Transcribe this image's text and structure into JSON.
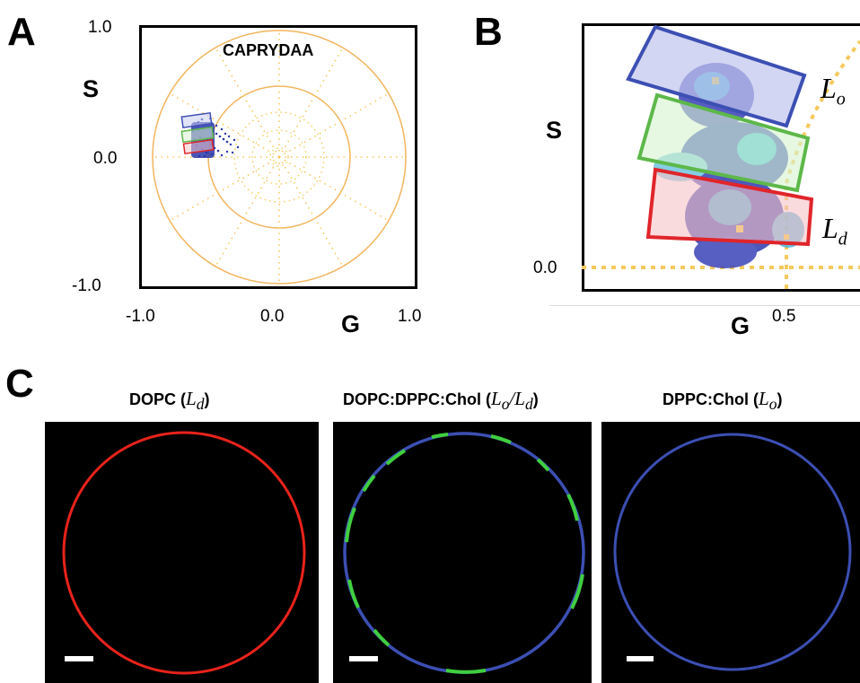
{
  "panels": {
    "a": {
      "letter": "A",
      "title": "CAPRYDAA",
      "y_axis_label": "S",
      "x_axis_label": "G",
      "y_ticks": [
        "1.0",
        "0.0",
        "-1.0"
      ],
      "x_ticks": [
        "-1.0",
        "0.0",
        "1.0"
      ]
    },
    "b": {
      "letter": "B",
      "y_axis_label": "S",
      "x_axis_label": "G",
      "y_tick": "0.0",
      "x_tick": "0.5",
      "lo_label": {
        "base": "L",
        "sub": "o"
      },
      "ld_label": {
        "base": "L",
        "sub": "d"
      }
    },
    "c": {
      "letter": "C",
      "images": [
        {
          "title_prefix": "DOPC (",
          "title_base": "L",
          "title_sub": "d",
          "title_suffix": ")",
          "ring_color": "#e8231b"
        },
        {
          "title_prefix": "DOPC:DPPC:Chol (",
          "title_base": "L",
          "title_sub": "o",
          "title_slash": "/",
          "title_base2": "L",
          "title_sub2": "d",
          "title_suffix": ")",
          "ring_color": "#3c4fb3",
          "domain_color": "#3fcf3f"
        },
        {
          "title_prefix": "DPPC:Chol (",
          "title_base": "L",
          "title_sub": "o",
          "title_suffix": ")",
          "ring_color": "#3c4fb3"
        }
      ]
    }
  },
  "colors": {
    "frame": "#000000",
    "phasor_circle": "#f2b55f",
    "dotted_guide": "#f5c95c",
    "lo_box": "#3c4fb3",
    "intermediate_box": "#5db84a",
    "ld_box": "#e0252a"
  }
}
